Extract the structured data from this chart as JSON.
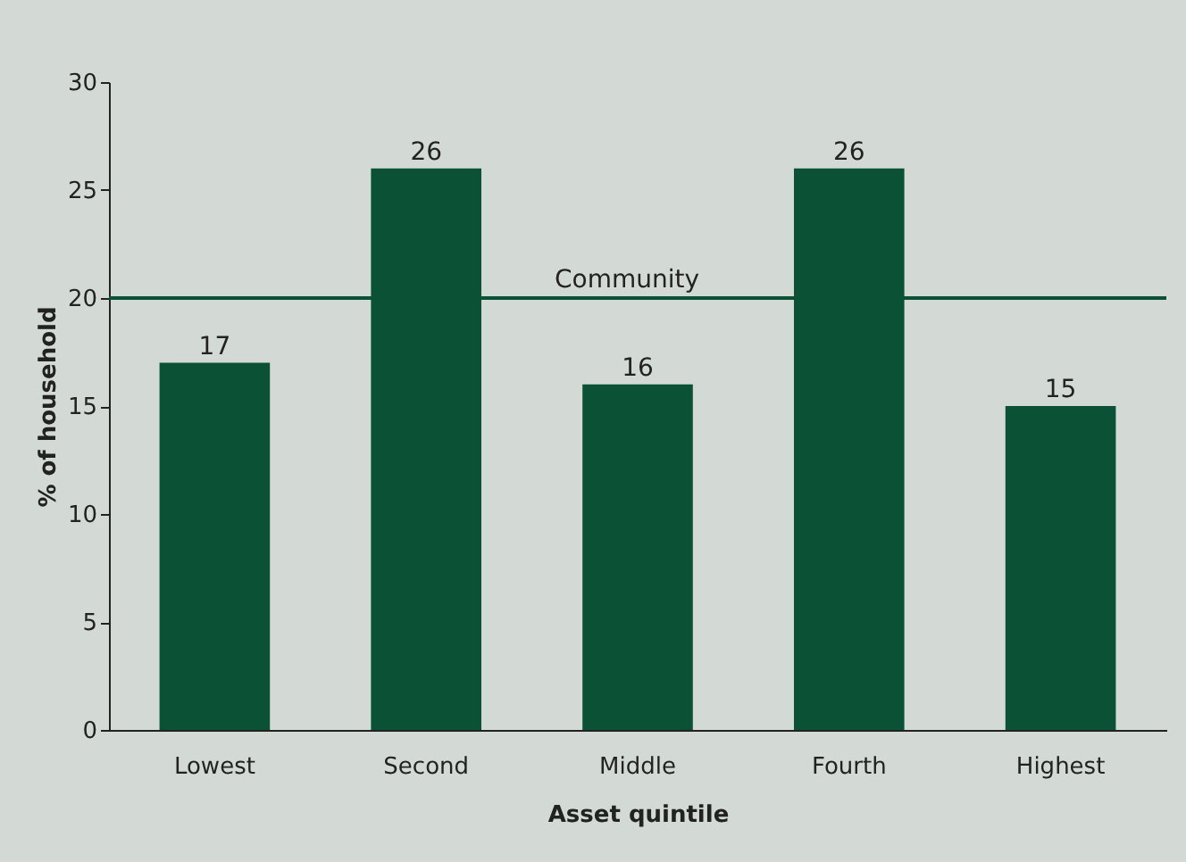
{
  "chart_data": {
    "type": "bar",
    "xlabel": "Asset quintile",
    "ylabel": "% of household",
    "categories": [
      "Lowest",
      "Second",
      "Middle",
      "Fourth",
      "Highest"
    ],
    "values": [
      17,
      26,
      16,
      26,
      15
    ],
    "color": "#0b5136",
    "ylim": [
      0,
      30
    ],
    "yticks": [
      0,
      5,
      10,
      15,
      20,
      25,
      30
    ],
    "grid": false,
    "data_labels": true,
    "ref_lines": [
      {
        "axis": "y",
        "value": 20,
        "label": "Community",
        "color": "#0b5136"
      }
    ]
  }
}
